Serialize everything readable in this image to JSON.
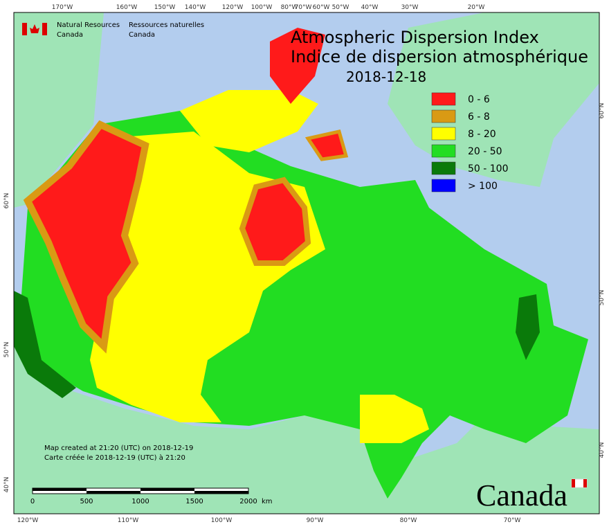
{
  "header": {
    "org_en": [
      "Natural Resources",
      "Canada"
    ],
    "org_fr": [
      "Ressources naturelles",
      "Canada"
    ]
  },
  "title": {
    "en": "Atmospheric Dispersion Index",
    "fr": "Indice de dispersion atmosphérique",
    "date": "2018-12-18"
  },
  "legend": [
    {
      "label": "0 - 6",
      "color": "#ff1a1a"
    },
    {
      "label": "6 - 8",
      "color": "#d99a14"
    },
    {
      "label": "8 - 20",
      "color": "#ffff00"
    },
    {
      "label": "20 - 50",
      "color": "#22dd22"
    },
    {
      "label": "50 - 100",
      "color": "#0a7a0a"
    },
    {
      "label": "> 100",
      "color": "#0000ff"
    }
  ],
  "axes": {
    "top": [
      "170°W",
      "160°W",
      "150°W",
      "140°W",
      "120°W",
      "100°W",
      "80°W",
      "70°W",
      "60°W",
      "50°W",
      "40°W",
      "30°W",
      "20°W"
    ],
    "bottom": [
      "120°W",
      "110°W",
      "100°W",
      "90°W",
      "80°W",
      "70°W"
    ],
    "left": [
      "60°N",
      "50°N",
      "40°N"
    ],
    "right": [
      "60°N",
      "50°N",
      "40°N"
    ]
  },
  "notes": [
    "Map created at 21:20 (UTC) on 2018-12-19",
    "Carte créée le 2018-12-19 (UTC) à 21:20"
  ],
  "scale": {
    "ticks": [
      "0",
      "500",
      "1000",
      "1500",
      "2000"
    ],
    "unit": "km"
  },
  "wordmark": "Canada"
}
